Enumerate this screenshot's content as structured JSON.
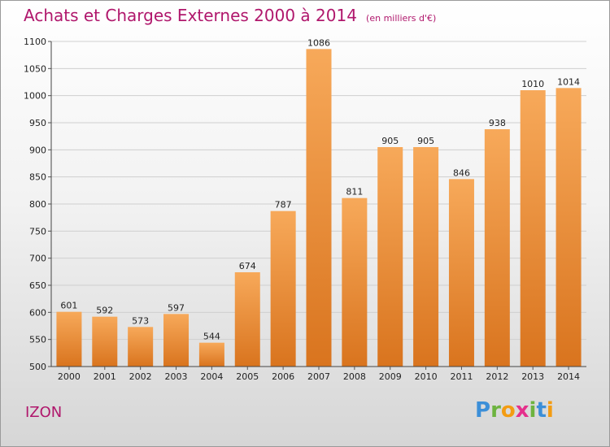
{
  "chart_data": {
    "type": "bar",
    "title": "Achats et Charges Externes 2000 à 2014",
    "unit_note": "(en milliers d'€)",
    "categories": [
      "2000",
      "2001",
      "2002",
      "2003",
      "2004",
      "2005",
      "2006",
      "2007",
      "2008",
      "2009",
      "2010",
      "2011",
      "2012",
      "2013",
      "2014"
    ],
    "values": [
      601,
      592,
      573,
      597,
      544,
      674,
      787,
      1086,
      811,
      905,
      905,
      846,
      938,
      1010,
      1014
    ],
    "ylim": [
      500,
      1100
    ],
    "yticks": [
      500,
      550,
      600,
      650,
      700,
      750,
      800,
      850,
      900,
      950,
      1000,
      1050,
      1100
    ],
    "grid": true,
    "bar_color": "#f0902e"
  },
  "footer": {
    "commune": "IZON",
    "logo_text": "Proxiti",
    "logo_letters": [
      "P",
      "r",
      "o",
      "x",
      "i",
      "t",
      "i"
    ],
    "logo_colors": [
      "#3c8fd8",
      "#6db33f",
      "#f39c12",
      "#e5308c",
      "#6db33f",
      "#3c8fd8",
      "#f39c12"
    ]
  }
}
